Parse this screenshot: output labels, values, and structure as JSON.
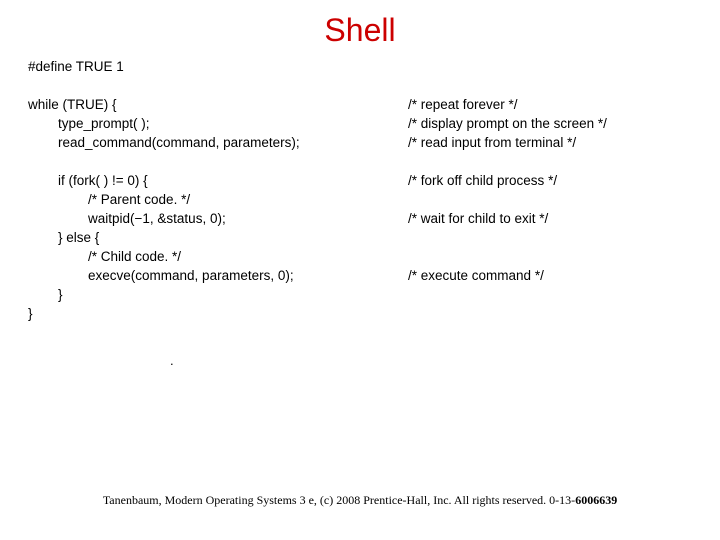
{
  "title": "Shell",
  "lines": [
    {
      "code": "#define TRUE 1",
      "comment": ""
    },
    {
      "code": "",
      "comment": ""
    },
    {
      "code": "while (TRUE) {",
      "comment": "/* repeat forever */"
    },
    {
      "code": "        type_prompt( );",
      "comment": "/* display prompt on the screen */"
    },
    {
      "code": "        read_command(command, parameters);",
      "comment": "/* read input from terminal */"
    },
    {
      "code": "",
      "comment": ""
    },
    {
      "code": "        if (fork( ) != 0) {",
      "comment": "/* fork off child process */"
    },
    {
      "code": "                /* Parent code. */",
      "comment": ""
    },
    {
      "code": "                waitpid(−1, &status, 0);",
      "comment": "/* wait for child to exit */"
    },
    {
      "code": "        } else {",
      "comment": ""
    },
    {
      "code": "                /* Child code. */",
      "comment": ""
    },
    {
      "code": "                execve(command, parameters, 0);",
      "comment": "/* execute command */"
    },
    {
      "code": "        }",
      "comment": ""
    },
    {
      "code": "}",
      "comment": ""
    }
  ],
  "dot": ".",
  "footer_prefix": "Tanenbaum, Modern Operating Systems 3 e, (c) 2008 Prentice-Hall, Inc. All rights reserved. 0-13-",
  "footer_isbn": "6006639",
  "colors": {
    "title": "#cc0000",
    "text": "#000000",
    "background": "#ffffff"
  },
  "fonts": {
    "title_size": 32,
    "code_size": 13.5,
    "footer_size": 12
  }
}
